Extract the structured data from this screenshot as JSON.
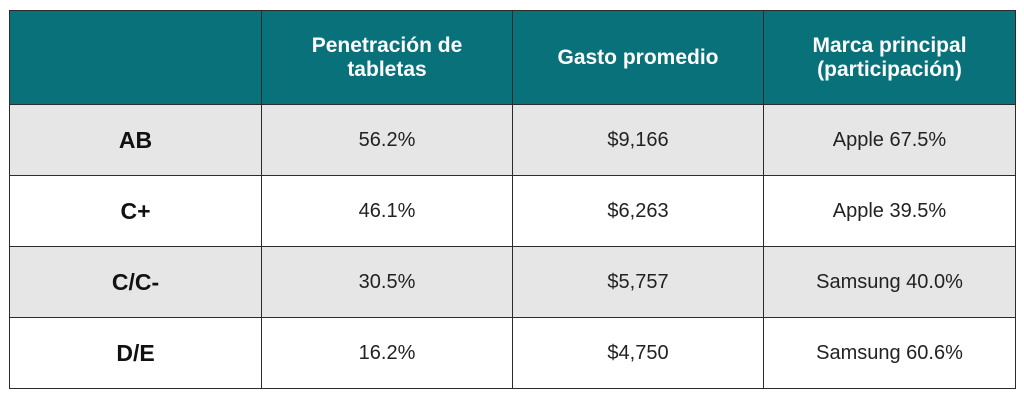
{
  "table": {
    "headers": [
      "",
      "Penetración de tabletas",
      "Gasto promedio",
      "Marca principal (participación)"
    ],
    "rows": [
      {
        "segment": "AB",
        "penetration": "56.2%",
        "avg_spend": "$9,166",
        "top_brand": "Apple 67.5%"
      },
      {
        "segment": "C+",
        "penetration": "46.1%",
        "avg_spend": "$6,263",
        "top_brand": "Apple 39.5%"
      },
      {
        "segment": "C/C-",
        "penetration": "30.5%",
        "avg_spend": "$5,757",
        "top_brand": "Samsung 40.0%"
      },
      {
        "segment": "D/E",
        "penetration": "16.2%",
        "avg_spend": "$4,750",
        "top_brand": "Samsung 60.6%"
      }
    ]
  },
  "colors": {
    "header_bg": "#087179",
    "header_text": "#ffffff",
    "shaded_row": "#e6e6e6",
    "plain_row": "#ffffff",
    "border": "#2b2b2b"
  }
}
